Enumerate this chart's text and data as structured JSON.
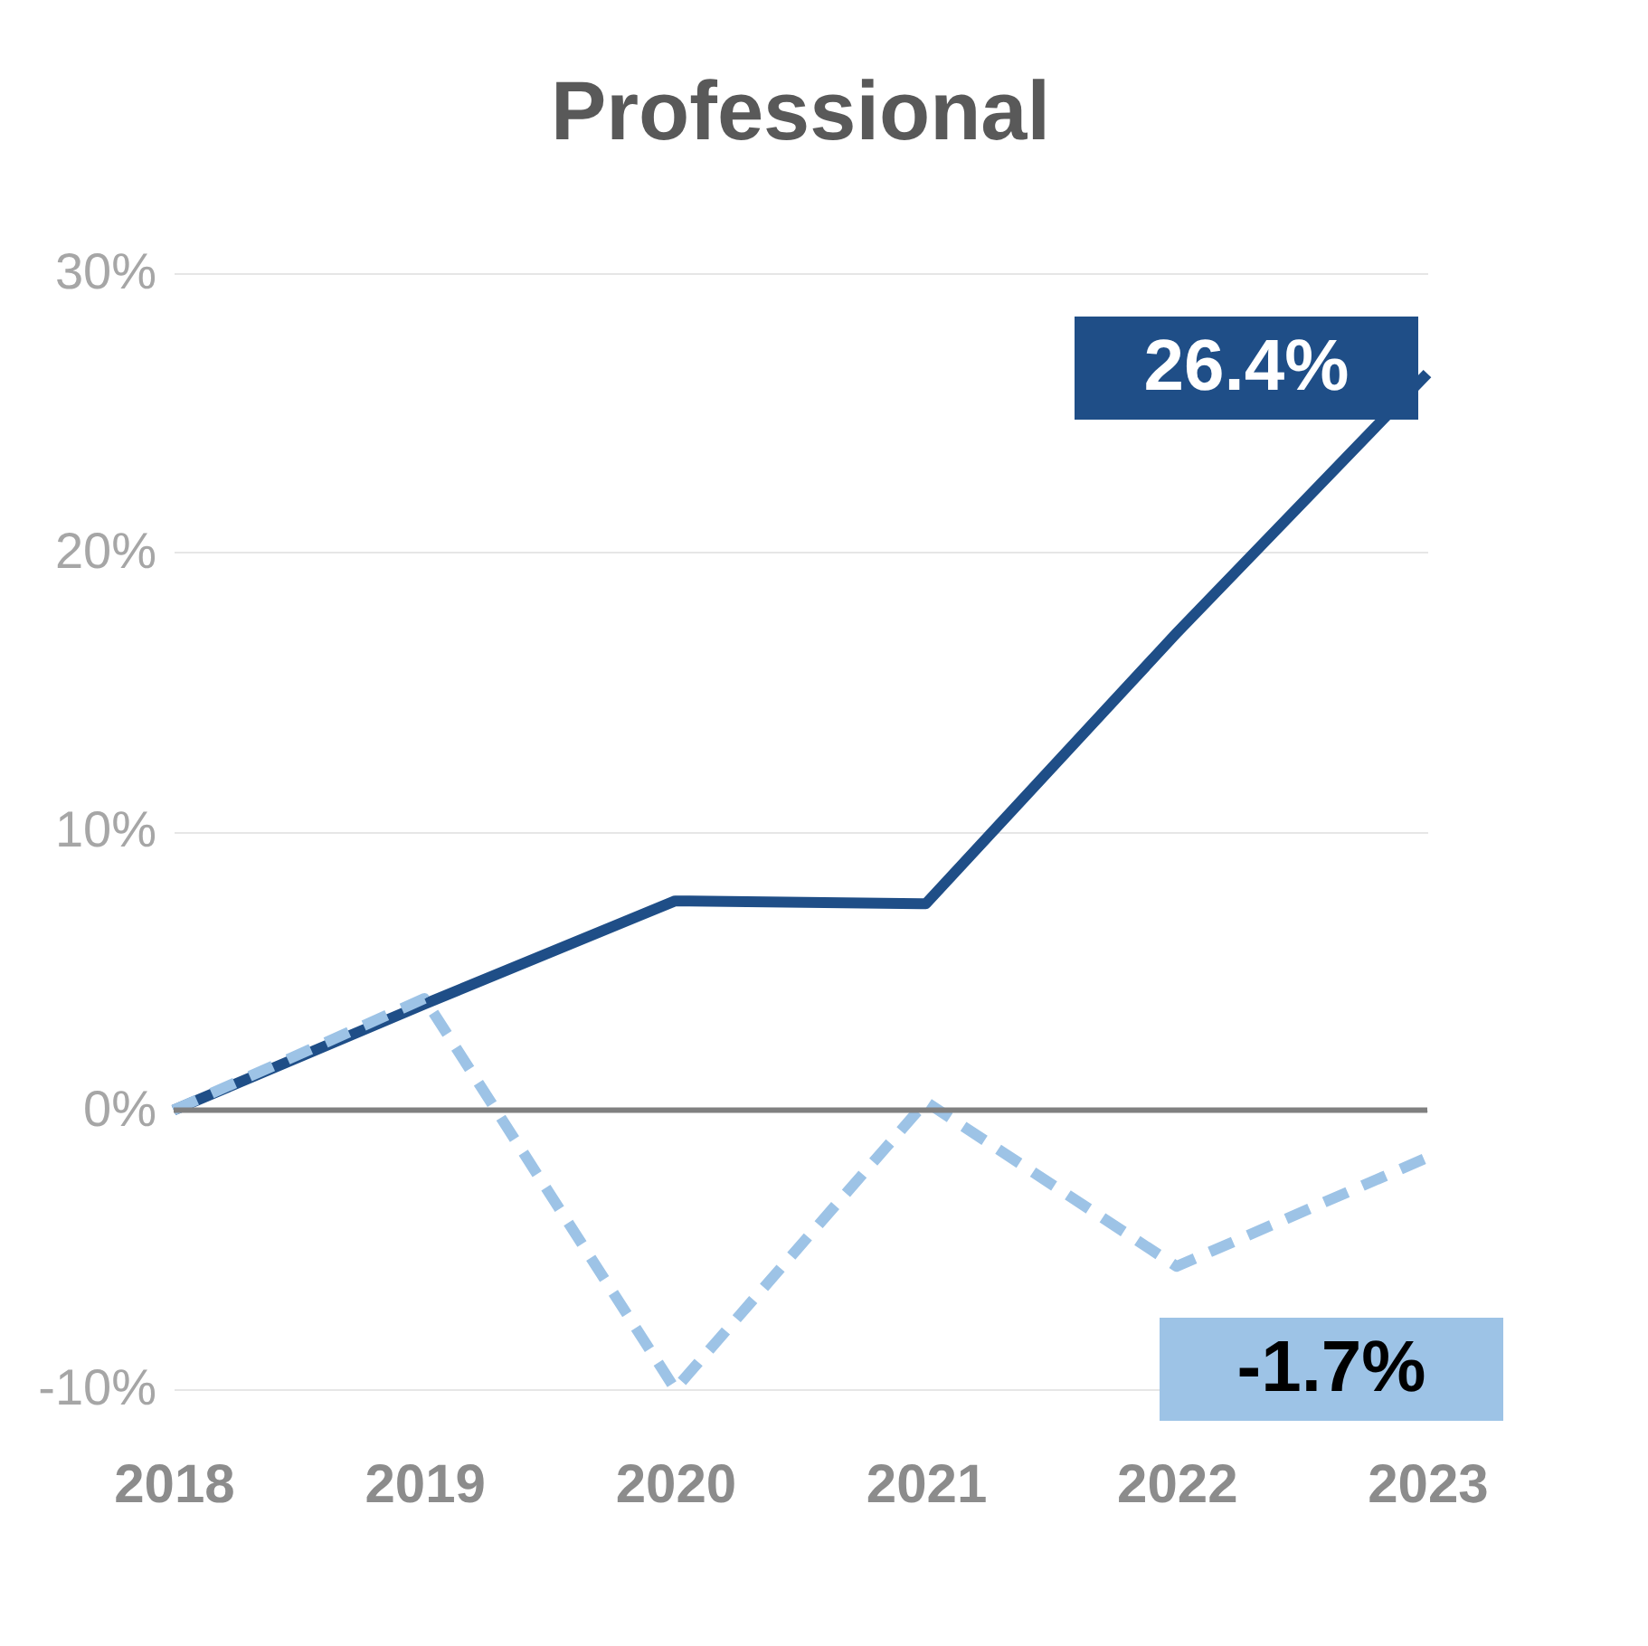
{
  "chart_data": {
    "type": "line",
    "title": "Professional",
    "categories": [
      "2018",
      "2019",
      "2020",
      "2021",
      "2022",
      "2023"
    ],
    "series": [
      {
        "color": "#1f4e87",
        "line_style": "solid",
        "values": [
          0,
          3.8,
          7.5,
          7.4,
          17.1,
          26.4
        ],
        "value_labels": [
          null,
          null,
          null,
          null,
          null,
          "26.4%"
        ]
      },
      {
        "color": "#9dc3e6",
        "line_style": "dashed",
        "values": [
          0,
          4.0,
          -10.0,
          0.3,
          -5.6,
          -1.7
        ],
        "value_labels": [
          null,
          null,
          null,
          null,
          null,
          "-1.7%"
        ]
      }
    ],
    "ylim": [
      -10,
      30
    ],
    "yticks": [
      {
        "value": -10,
        "label": "-10%"
      },
      {
        "value": 0,
        "label": "0%"
      },
      {
        "value": 10,
        "label": "10%"
      },
      {
        "value": 20,
        "label": "20%"
      },
      {
        "value": 30,
        "label": "30%"
      }
    ],
    "grid": "y",
    "marker": "none",
    "ref_lines": [
      {
        "axis": "y",
        "value": 0,
        "color": "#808080"
      }
    ]
  }
}
